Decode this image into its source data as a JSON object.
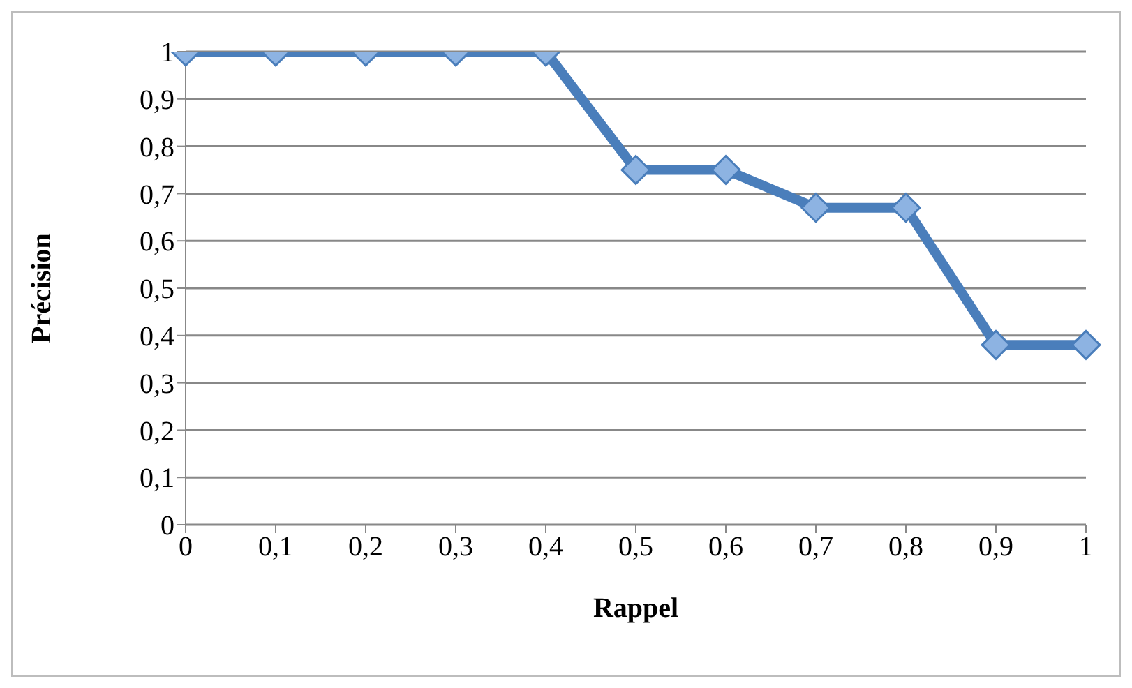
{
  "chart_data": {
    "type": "line",
    "xlabel": "Rappel",
    "ylabel": "Précision",
    "categories": [
      "0",
      "0,1",
      "0,2",
      "0,3",
      "0,4",
      "0,5",
      "0,6",
      "0,7",
      "0,8",
      "0,9",
      "1"
    ],
    "series": [
      {
        "color": "#4a7ebb",
        "values": [
          1,
          1,
          1,
          1,
          1,
          0.75,
          0.75,
          0.67,
          0.67,
          0.38,
          0.38
        ]
      }
    ],
    "ylim": [
      0,
      1
    ],
    "yticks": [
      0,
      {
        "value": 0.1,
        "label": "0,1"
      },
      {
        "value": 0.2,
        "label": "0,2"
      },
      {
        "value": 0.3,
        "label": "0,3"
      },
      {
        "value": 0.4,
        "label": "0,4"
      },
      {
        "value": 0.5,
        "label": "0,5"
      },
      {
        "value": 0.6,
        "label": "0,6"
      },
      {
        "value": 0.7,
        "label": "0,7"
      },
      {
        "value": 0.8,
        "label": "0,8"
      },
      {
        "value": 0.9,
        "label": "0,9"
      },
      1
    ],
    "grid": "y",
    "marker": "diamond",
    "line_style": "solid"
  }
}
